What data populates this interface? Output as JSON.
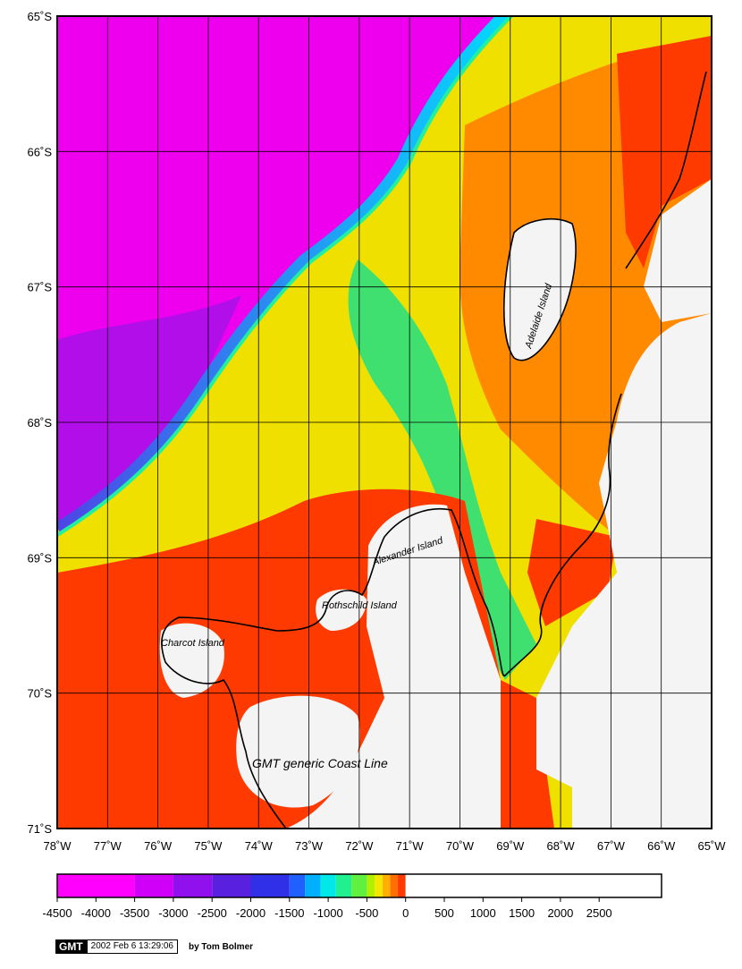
{
  "map": {
    "lat_labels": [
      "65˚S",
      "66˚S",
      "67˚S",
      "68˚S",
      "69˚S",
      "70˚S",
      "71˚S"
    ],
    "lon_labels": [
      "78˚W",
      "77˚W",
      "76˚W",
      "75˚W",
      "74˚W",
      "73˚W",
      "72˚W",
      "71˚W",
      "70˚W",
      "69˚W",
      "68˚W",
      "67˚W",
      "66˚W",
      "65˚W"
    ],
    "place_labels": [
      {
        "name": "adelaide",
        "text": "Adelaide Island"
      },
      {
        "name": "alexander",
        "text": "Alexander Island"
      },
      {
        "name": "rothschild",
        "text": "Rothschild Island"
      },
      {
        "name": "charcot",
        "text": "Charcot Island"
      },
      {
        "name": "coastline",
        "text": "GMT generic Coast Line"
      }
    ],
    "colors": {
      "deep": "#ee00ee",
      "abyssal": "#5a20e0",
      "slope_cyan": "#00e0ff",
      "shelf_green": "#30e860",
      "shelf_yellow": "#f4e800",
      "shallow_orange": "#ff7000",
      "nearshore_red": "#ff3a00",
      "land": "#f4f4f4"
    }
  },
  "colorbar": {
    "tick_labels": [
      "-4500",
      "-4000",
      "-3500",
      "-3000",
      "-2500",
      "-2000",
      "-1500",
      "-1000",
      "-500",
      "0",
      "500",
      "1000",
      "1500",
      "2000",
      "2500"
    ]
  },
  "stamp": {
    "logo": "GMT",
    "date": "2002 Feb  6 13:29:06",
    "author": "by Tom Bolmer"
  }
}
